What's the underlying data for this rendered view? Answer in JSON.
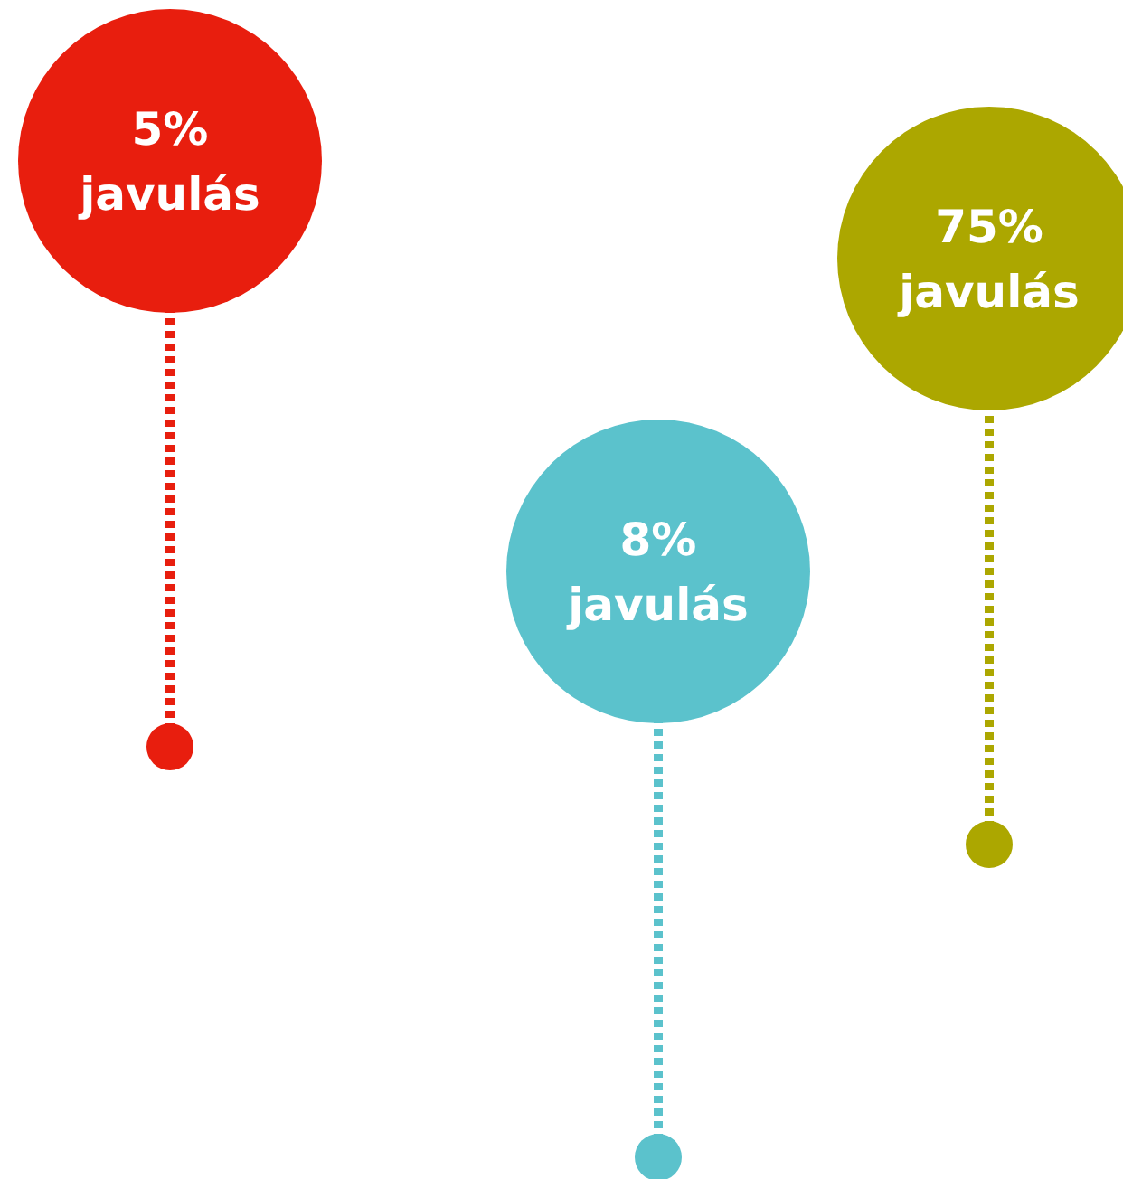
{
  "chart_data": {
    "type": "other",
    "categories": [
      "javulás",
      "javulás",
      "javulás"
    ],
    "values": [
      5,
      8,
      75
    ],
    "value_labels": [
      "5%",
      "8%",
      "75%"
    ],
    "colors": [
      "#e81e0e",
      "#5bc2cc",
      "#aca700"
    ]
  }
}
